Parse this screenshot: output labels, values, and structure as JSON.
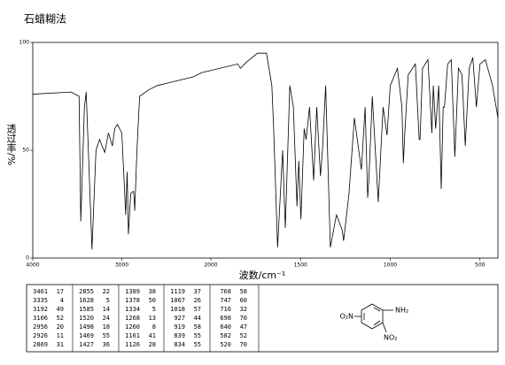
{
  "chart_data": {
    "type": "line",
    "title": "石蜡糊法",
    "xlabel": "波数/cm⁻¹",
    "ylabel": "透过率/%",
    "x_scale_break": 2000,
    "xlim": [
      4000,
      400
    ],
    "ylim": [
      0,
      100
    ],
    "xticks": [
      4000,
      3000,
      2000,
      1500,
      1000,
      500
    ],
    "yticks": [
      0,
      50,
      100
    ],
    "color": "#000000",
    "x": [
      4000,
      3570,
      3480,
      3461,
      3420,
      3400,
      3335,
      3290,
      3250,
      3192,
      3150,
      3106,
      3080,
      3050,
      3000,
      2956,
      2940,
      2926,
      2900,
      2869,
      2862,
      2855,
      2830,
      2800,
      2700,
      2600,
      2500,
      2400,
      2300,
      2200,
      2100,
      2000,
      1900,
      1850,
      1835,
      1800,
      1740,
      1690,
      1660,
      1650,
      1628,
      1600,
      1585,
      1560,
      1540,
      1520,
      1510,
      1498,
      1480,
      1469,
      1450,
      1427,
      1410,
      1389,
      1378,
      1360,
      1334,
      1300,
      1268,
      1260,
      1230,
      1200,
      1161,
      1140,
      1126,
      1119,
      1100,
      1067,
      1040,
      1018,
      1000,
      960,
      935,
      927,
      919,
      900,
      860,
      839,
      834,
      820,
      790,
      768,
      760,
      747,
      730,
      716,
      705,
      698,
      680,
      660,
      640,
      620,
      600,
      582,
      560,
      540,
      520,
      500,
      470,
      430,
      400
    ],
    "values": [
      76,
      77,
      75,
      17,
      70,
      77,
      4,
      50,
      55,
      49,
      58,
      52,
      60,
      62,
      58,
      20,
      40,
      11,
      30,
      31,
      28,
      22,
      50,
      75,
      78,
      80,
      81,
      82,
      83,
      84,
      86,
      87,
      89,
      90,
      88,
      91,
      95,
      95,
      80,
      60,
      5,
      50,
      14,
      80,
      70,
      24,
      45,
      18,
      60,
      55,
      70,
      36,
      70,
      38,
      50,
      80,
      5,
      20,
      13,
      8,
      30,
      65,
      41,
      70,
      28,
      37,
      75,
      26,
      70,
      57,
      80,
      88,
      70,
      44,
      58,
      85,
      90,
      55,
      55,
      88,
      92,
      58,
      80,
      60,
      80,
      32,
      70,
      70,
      90,
      92,
      47,
      88,
      85,
      52,
      88,
      93,
      70,
      90,
      92,
      80,
      65
    ]
  },
  "peak_table": [
    [
      3461,
      17
    ],
    [
      3335,
      4
    ],
    [
      3192,
      49
    ],
    [
      3106,
      52
    ],
    [
      2956,
      20
    ],
    [
      2926,
      11
    ],
    [
      2869,
      31
    ],
    [
      2855,
      22
    ],
    [
      1628,
      5
    ],
    [
      1585,
      14
    ],
    [
      1520,
      24
    ],
    [
      1498,
      18
    ],
    [
      1469,
      55
    ],
    [
      1427,
      36
    ],
    [
      1389,
      38
    ],
    [
      1378,
      50
    ],
    [
      1334,
      5
    ],
    [
      1268,
      13
    ],
    [
      1260,
      8
    ],
    [
      1161,
      41
    ],
    [
      1126,
      28
    ],
    [
      1119,
      37
    ],
    [
      1067,
      26
    ],
    [
      1018,
      57
    ],
    [
      927,
      44
    ],
    [
      919,
      58
    ],
    [
      839,
      55
    ],
    [
      834,
      55
    ],
    [
      768,
      58
    ],
    [
      747,
      60
    ],
    [
      716,
      32
    ],
    [
      698,
      70
    ],
    [
      640,
      47
    ],
    [
      582,
      52
    ],
    [
      520,
      70
    ]
  ],
  "structure": {
    "labels": [
      "O₂N",
      "NH₂",
      "NO₂"
    ]
  }
}
